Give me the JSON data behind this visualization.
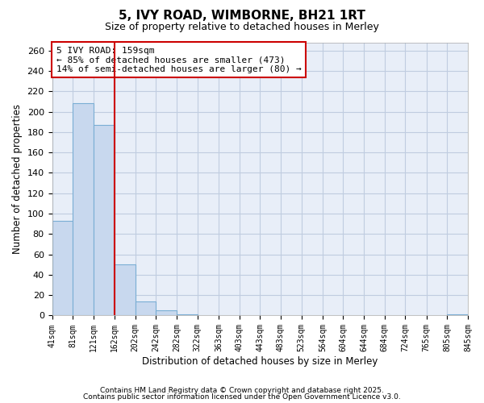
{
  "title1": "5, IVY ROAD, WIMBORNE, BH21 1RT",
  "title2": "Size of property relative to detached houses in Merley",
  "xlabel": "Distribution of detached houses by size in Merley",
  "ylabel": "Number of detached properties",
  "bin_edges": [
    41,
    81,
    121,
    162,
    202,
    242,
    282,
    322,
    363,
    403,
    443,
    483,
    523,
    564,
    604,
    644,
    684,
    724,
    765,
    805,
    845
  ],
  "bar_heights": [
    93,
    208,
    187,
    50,
    14,
    5,
    1,
    0,
    0,
    0,
    0,
    0,
    0,
    0,
    0,
    0,
    0,
    0,
    0,
    1
  ],
  "bar_color": "#c8d8ee",
  "bar_edgecolor": "#7aaed4",
  "bg_color": "#e8eef8",
  "grid_color": "#c0cce0",
  "red_line_x": 162,
  "annotation_title": "5 IVY ROAD: 159sqm",
  "annotation_line1": "← 85% of detached houses are smaller (473)",
  "annotation_line2": "14% of semi-detached houses are larger (80) →",
  "annotation_box_color": "#ffffff",
  "annotation_box_edgecolor": "#cc0000",
  "red_line_color": "#cc0000",
  "ylim": [
    0,
    268
  ],
  "yticks": [
    0,
    20,
    40,
    60,
    80,
    100,
    120,
    140,
    160,
    180,
    200,
    220,
    240,
    260
  ],
  "fig_bg": "#ffffff",
  "footer1": "Contains HM Land Registry data © Crown copyright and database right 2025.",
  "footer2": "Contains public sector information licensed under the Open Government Licence v3.0.",
  "tick_labels": [
    "41sqm",
    "81sqm",
    "121sqm",
    "162sqm",
    "202sqm",
    "242sqm",
    "282sqm",
    "322sqm",
    "363sqm",
    "403sqm",
    "443sqm",
    "483sqm",
    "523sqm",
    "564sqm",
    "604sqm",
    "644sqm",
    "684sqm",
    "724sqm",
    "765sqm",
    "805sqm",
    "845sqm"
  ]
}
